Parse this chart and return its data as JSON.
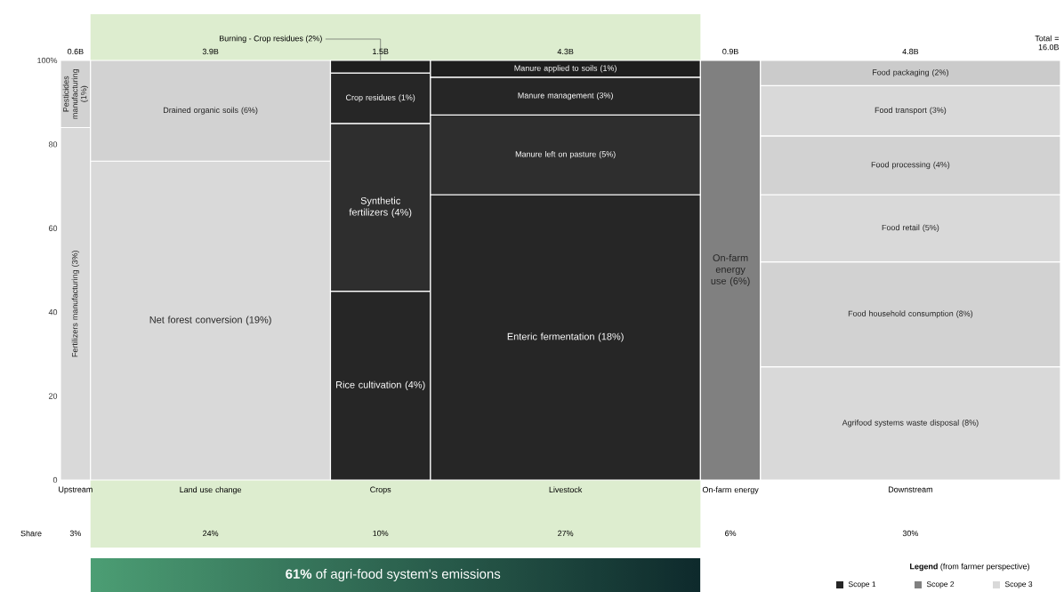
{
  "chart_data": {
    "type": "bar",
    "stacked": true,
    "categories": [
      "Upstream",
      "Land use change",
      "Crops",
      "Livestock",
      "On-farm energy",
      "Downstream"
    ],
    "ylim": [
      0,
      100
    ],
    "yticks": [
      0,
      20,
      40,
      60,
      80,
      {
        "value": 100,
        "label": "100%"
      }
    ],
    "legend": "bottom right",
    "legend_title": "**Legend** (from farmer perspective)",
    "annotations": [
      "Share",
      "Total = 16.0B",
      "**61%** of agri-food system's emissions",
      "0.6B",
      "3.9B",
      "1.5B",
      "4.3B",
      "0.9B",
      "4.8B",
      "3%",
      "24%",
      "10%",
      "27%",
      "6%",
      "30%"
    ],
    "series": [
      {
        "name": "Fertilizers manufacturing (3%)",
        "color": "#d9d9d9",
        "values": [
          84,
          null,
          null,
          null,
          null,
          null
        ]
      },
      {
        "name": "Pesticides manufacturing (1%)",
        "color": "#d2d2d2",
        "values": [
          16,
          null,
          null,
          null,
          null,
          null
        ]
      },
      {
        "name": "Net forest conversion (19%)",
        "color": "#d9d9d9",
        "values": [
          null,
          76,
          null,
          null,
          null,
          null
        ]
      },
      {
        "name": "Drained organic soils (6%)",
        "color": "#d2d2d2",
        "values": [
          null,
          24,
          null,
          null,
          null,
          null
        ]
      },
      {
        "name": "Rice cultivation (4%)",
        "color": "#262626",
        "values": [
          null,
          null,
          45,
          null,
          null,
          null
        ]
      },
      {
        "name": "Synthetic fertilizers (4%)",
        "color": "#2e2e2e",
        "values": [
          null,
          null,
          40,
          null,
          null,
          null
        ]
      },
      {
        "name": "Crop residues (1%)",
        "color": "#262626",
        "values": [
          null,
          null,
          12,
          null,
          null,
          null
        ]
      },
      {
        "name": "Burning - Crop residues (2%)",
        "color": "#1e1e1e",
        "values": [
          null,
          null,
          3,
          null,
          null,
          null
        ]
      },
      {
        "name": "Enteric fermentation (18%)",
        "color": "#262626",
        "values": [
          null,
          null,
          null,
          68,
          null,
          null
        ]
      },
      {
        "name": "Manure left on pasture (5%)",
        "color": "#2e2e2e",
        "values": [
          null,
          null,
          null,
          19,
          null,
          null
        ]
      },
      {
        "name": "Manure management (3%)",
        "color": "#262626",
        "values": [
          null,
          null,
          null,
          9,
          null,
          null
        ]
      },
      {
        "name": "Manure applied to soils (1%)",
        "color": "#1e1e1e",
        "values": [
          null,
          null,
          null,
          4,
          null,
          null
        ]
      },
      {
        "name": "On-farm energy use (6%)",
        "color": "#808080",
        "values": [
          null,
          null,
          null,
          null,
          100,
          null
        ]
      },
      {
        "name": "Agrifood systems waste disposal (8%)",
        "color": "#d9d9d9",
        "values": [
          null,
          null,
          null,
          null,
          null,
          27
        ]
      },
      {
        "name": "Food household consumption (8%)",
        "color": "#d2d2d2",
        "values": [
          null,
          null,
          null,
          null,
          null,
          25
        ]
      },
      {
        "name": "Food retail (5%)",
        "color": "#d9d9d9",
        "values": [
          null,
          null,
          null,
          null,
          null,
          16
        ]
      },
      {
        "name": "Food processing (4%)",
        "color": "#d2d2d2",
        "values": [
          null,
          null,
          null,
          null,
          null,
          14
        ]
      },
      {
        "name": "Food transport (3%)",
        "color": "#d9d9d9",
        "values": [
          null,
          null,
          null,
          null,
          null,
          12
        ]
      },
      {
        "name": "Food packaging (2%)",
        "color": "#cbcbcb",
        "values": [
          null,
          null,
          null,
          null,
          null,
          6
        ]
      },
      {
        "name": "Scope 1",
        "color": "#262626",
        "values": [
          null,
          null,
          null,
          null,
          null,
          null
        ]
      },
      {
        "name": "Scope 2",
        "color": "#808080",
        "values": [
          null,
          null,
          null,
          null,
          null,
          null
        ]
      },
      {
        "name": "Scope 3",
        "color": "#d9d9d9",
        "values": [
          null,
          null,
          null,
          null,
          null,
          null
        ]
      }
    ]
  }
}
